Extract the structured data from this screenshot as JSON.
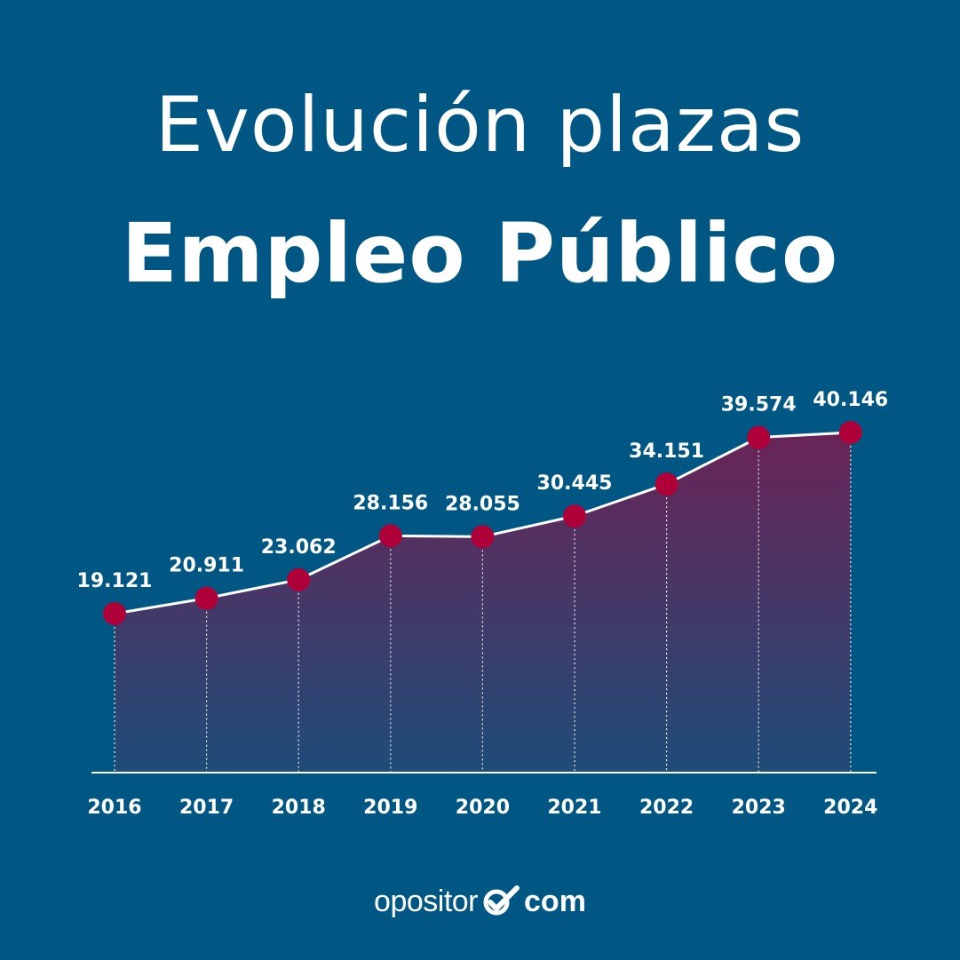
{
  "title": {
    "line1": "Evolución plazas",
    "line2": "Empleo Público"
  },
  "colors": {
    "background": "#005783",
    "marker": "#b0003a",
    "area_top": "#6a2456",
    "area_bottom": "#1f4c78",
    "line": "#ffffff"
  },
  "chart_data": {
    "type": "area",
    "x": [
      "2016",
      "2017",
      "2018",
      "2019",
      "2020",
      "2021",
      "2022",
      "2023",
      "2024"
    ],
    "series": [
      {
        "values": [
          19121,
          20911,
          23062,
          28156,
          28055,
          30445,
          34151,
          39574,
          40146
        ],
        "labels": [
          "19.121",
          "20.911",
          "23.062",
          "28.156",
          "28.055",
          "30.445",
          "34.151",
          "39.574",
          "40.146"
        ]
      }
    ],
    "title": "Evolución plazas Empleo Público",
    "xlabel": "",
    "ylabel": "",
    "grid": false,
    "markers": true
  },
  "logo": {
    "text": "opositor",
    "suffix": "com",
    "icon": "check-circle-icon"
  }
}
